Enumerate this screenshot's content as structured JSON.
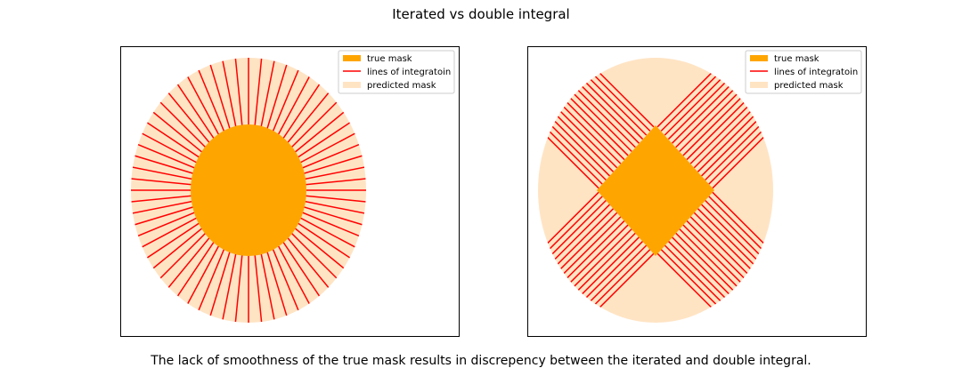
{
  "figure": {
    "title": "Iterated vs double integral",
    "caption": "The lack of smoothness of the true mask results in discrepency between the iterated and double integral."
  },
  "colors": {
    "true_mask": "#ffa500",
    "lines": "#ff0000",
    "predicted_mask": "#ffe4c4"
  },
  "legend": {
    "items": [
      {
        "label": "true mask",
        "kind": "patch",
        "color": "#ffa500"
      },
      {
        "label": "lines of integratoin",
        "kind": "line",
        "color": "#ff0000"
      },
      {
        "label": "predicted mask",
        "kind": "patch",
        "color": "#ffe4c4"
      }
    ]
  },
  "panels": [
    {
      "id": "left",
      "true_mask_shape": "circle",
      "line_style": "radial",
      "line_count": 64
    },
    {
      "id": "right",
      "true_mask_shape": "diamond",
      "line_style": "diagonal",
      "line_count": 64
    }
  ]
}
